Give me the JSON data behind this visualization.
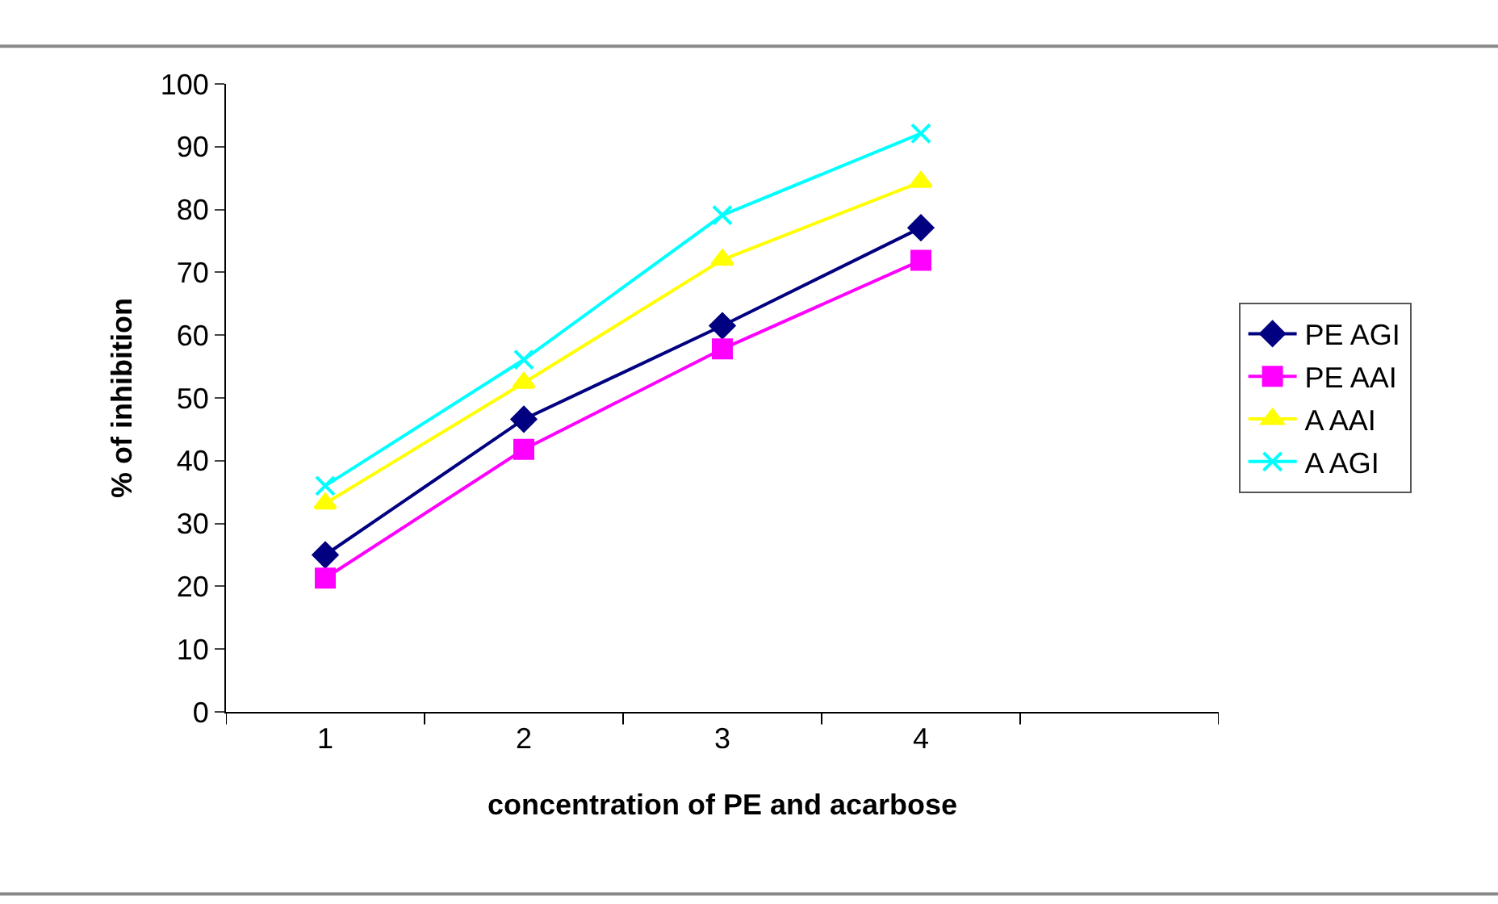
{
  "chart_data": {
    "type": "line",
    "xlabel": "concentration of PE and acarbose",
    "ylabel": "% of inhibition",
    "categories": [
      "1",
      "2",
      "3",
      "4",
      null
    ],
    "ylim": [
      0,
      100
    ],
    "yticks": [
      0,
      10,
      20,
      30,
      40,
      50,
      60,
      70,
      80,
      90,
      100
    ],
    "grid": false,
    "legend": "right",
    "line_style": "solid",
    "series": [
      {
        "name": "PE AGI",
        "color": "#000080",
        "marker": "diamond",
        "values": [
          25.0,
          46.6,
          61.5,
          77.1,
          null
        ]
      },
      {
        "name": "PE AAI",
        "color": "#ff00ff",
        "marker": "square",
        "values": [
          21.3,
          41.8,
          57.8,
          71.9,
          null
        ]
      },
      {
        "name": "A AAI",
        "color": "#ffff00",
        "marker": "triangle",
        "values": [
          33.2,
          52.4,
          72.0,
          84.4,
          null
        ]
      },
      {
        "name": "A AGI",
        "color": "#00ffff",
        "marker": "cross",
        "values": [
          36.0,
          56.1,
          79.1,
          92.1,
          null
        ]
      }
    ]
  }
}
